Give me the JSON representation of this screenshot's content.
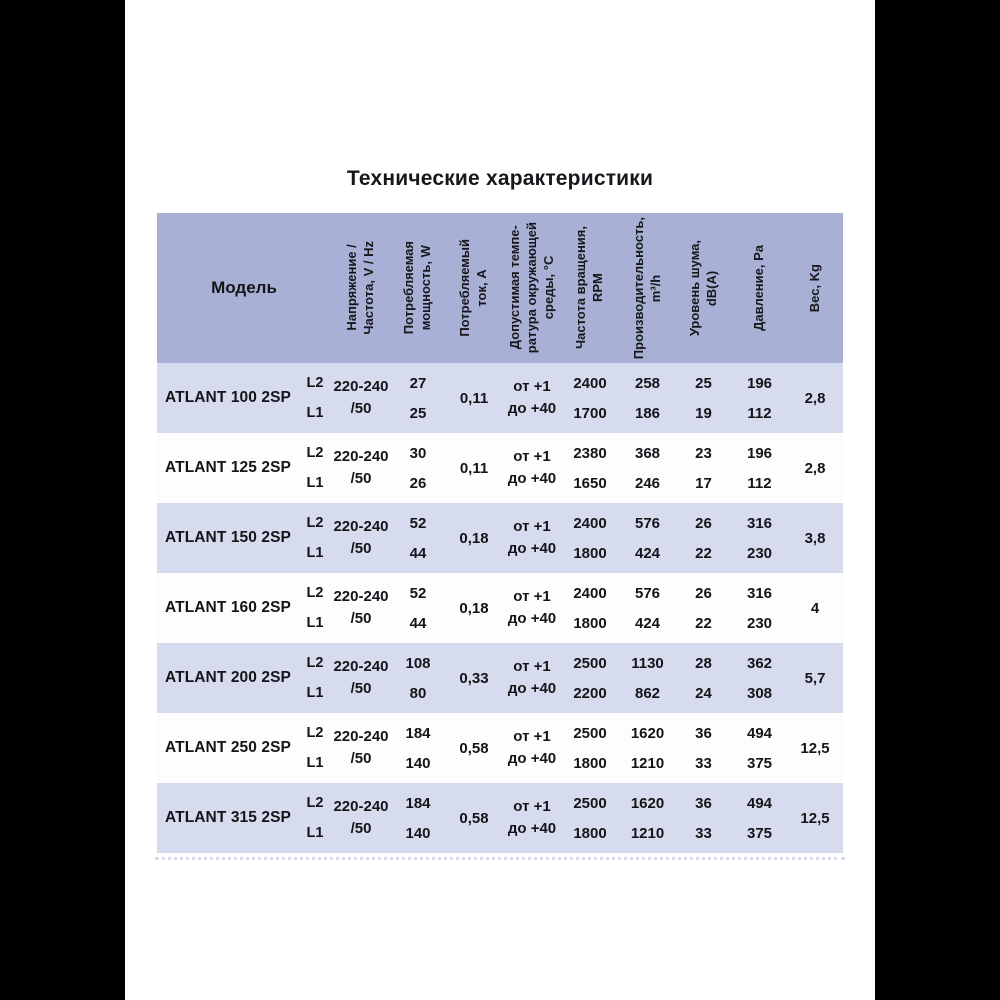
{
  "page": {
    "title": "Технические характеристики"
  },
  "colors": {
    "letterbox": "#000000",
    "header_bg": "#a8b1d5",
    "row_alt_bg": "#d7dbee",
    "row_bg": "#fdfdfe",
    "text": "#1a1a1f"
  },
  "table": {
    "model_header": "Модель",
    "columns": [
      {
        "id": "voltage",
        "label": "Напряжение /\nЧастота, V / Hz"
      },
      {
        "id": "power",
        "label": "Потребляемая\nмощность, W"
      },
      {
        "id": "current",
        "label": "Потребляемый\nток, А"
      },
      {
        "id": "temperature",
        "label": "Допустимая темпе-\nратура окружающей\nсреды, °С"
      },
      {
        "id": "rpm",
        "label": "Частота вращения,\nRPM"
      },
      {
        "id": "capacity",
        "label": "Производительность,\nm³/h"
      },
      {
        "id": "noise",
        "label": "Уровень шума,\ndB(A)"
      },
      {
        "id": "pressure",
        "label": "Давление, Pa"
      },
      {
        "id": "weight",
        "label": "Вес, Kg"
      }
    ],
    "rows": [
      {
        "model": "ATLANT 100 2SP",
        "sub": [
          "L2",
          "L1"
        ],
        "voltage": "220-240\n/50",
        "power": [
          "27",
          "25"
        ],
        "current": "0,11",
        "temperature": "от +1\nдо +40",
        "rpm": [
          "2400",
          "1700"
        ],
        "capacity": [
          "258",
          "186"
        ],
        "noise": [
          "25",
          "19"
        ],
        "pressure": [
          "196",
          "112"
        ],
        "weight": "2,8"
      },
      {
        "model": "ATLANT 125 2SP",
        "sub": [
          "L2",
          "L1"
        ],
        "voltage": "220-240\n/50",
        "power": [
          "30",
          "26"
        ],
        "current": "0,11",
        "temperature": "от +1\nдо +40",
        "rpm": [
          "2380",
          "1650"
        ],
        "capacity": [
          "368",
          "246"
        ],
        "noise": [
          "23",
          "17"
        ],
        "pressure": [
          "196",
          "112"
        ],
        "weight": "2,8"
      },
      {
        "model": "ATLANT 150 2SP",
        "sub": [
          "L2",
          "L1"
        ],
        "voltage": "220-240\n/50",
        "power": [
          "52",
          "44"
        ],
        "current": "0,18",
        "temperature": "от +1\nдо +40",
        "rpm": [
          "2400",
          "1800"
        ],
        "capacity": [
          "576",
          "424"
        ],
        "noise": [
          "26",
          "22"
        ],
        "pressure": [
          "316",
          "230"
        ],
        "weight": "3,8"
      },
      {
        "model": "ATLANT 160 2SP",
        "sub": [
          "L2",
          "L1"
        ],
        "voltage": "220-240\n/50",
        "power": [
          "52",
          "44"
        ],
        "current": "0,18",
        "temperature": "от +1\nдо +40",
        "rpm": [
          "2400",
          "1800"
        ],
        "capacity": [
          "576",
          "424"
        ],
        "noise": [
          "26",
          "22"
        ],
        "pressure": [
          "316",
          "230"
        ],
        "weight": "4"
      },
      {
        "model": "ATLANT 200 2SP",
        "sub": [
          "L2",
          "L1"
        ],
        "voltage": "220-240\n/50",
        "power": [
          "108",
          "80"
        ],
        "current": "0,33",
        "temperature": "от +1\nдо +40",
        "rpm": [
          "2500",
          "2200"
        ],
        "capacity": [
          "1130",
          "862"
        ],
        "noise": [
          "28",
          "24"
        ],
        "pressure": [
          "362",
          "308"
        ],
        "weight": "5,7"
      },
      {
        "model": "ATLANT 250 2SP",
        "sub": [
          "L2",
          "L1"
        ],
        "voltage": "220-240\n/50",
        "power": [
          "184",
          "140"
        ],
        "current": "0,58",
        "temperature": "от +1\nдо +40",
        "rpm": [
          "2500",
          "1800"
        ],
        "capacity": [
          "1620",
          "1210"
        ],
        "noise": [
          "36",
          "33"
        ],
        "pressure": [
          "494",
          "375"
        ],
        "weight": "12,5"
      },
      {
        "model": "ATLANT 315 2SP",
        "sub": [
          "L2",
          "L1"
        ],
        "voltage": "220-240\n/50",
        "power": [
          "184",
          "140"
        ],
        "current": "0,58",
        "temperature": "от +1\nдо +40",
        "rpm": [
          "2500",
          "1800"
        ],
        "capacity": [
          "1620",
          "1210"
        ],
        "noise": [
          "36",
          "33"
        ],
        "pressure": [
          "494",
          "375"
        ],
        "weight": "12,5"
      }
    ]
  }
}
